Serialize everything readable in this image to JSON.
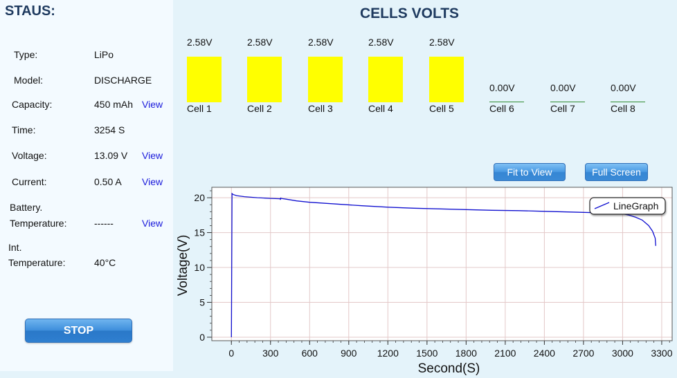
{
  "status": {
    "title": "STAUS:",
    "type_label": "Type:",
    "type_value": "LiPo",
    "model_label": "Model:",
    "model_value": "DISCHARGE",
    "capacity_label": "Capacity:",
    "capacity_value": "450 mAh",
    "time_label": "Time:",
    "time_value": "3254 S",
    "voltage_label": "Voltage:",
    "voltage_value": "13.09 V",
    "current_label": "Current:",
    "current_value": "0.50 A",
    "battery_label_1": "Battery.",
    "battery_label_2": "Temperature:",
    "battery_value": "------",
    "int_label_1": "Int.",
    "int_label_2": "Temperature:",
    "int_value": "40°C",
    "view_label": "View",
    "stop_label": "STOP"
  },
  "cells": {
    "title": "CELLS VOLTS",
    "items": [
      {
        "name": "Cell 1",
        "volt": "2.58V",
        "active": true
      },
      {
        "name": "Cell 2",
        "volt": "2.58V",
        "active": true
      },
      {
        "name": "Cell 3",
        "volt": "2.58V",
        "active": true
      },
      {
        "name": "Cell 4",
        "volt": "2.58V",
        "active": true
      },
      {
        "name": "Cell 5",
        "volt": "2.58V",
        "active": true
      },
      {
        "name": "Cell 6",
        "volt": "0.00V",
        "active": false
      },
      {
        "name": "Cell 7",
        "volt": "0.00V",
        "active": false
      },
      {
        "name": "Cell 8",
        "volt": "0.00V",
        "active": false
      }
    ],
    "bar_color": "#ffff00",
    "empty_line_color": "#2e8b2e"
  },
  "toolbar": {
    "fit_label": "Fit to View",
    "full_label": "Full Screen"
  },
  "chart_data": {
    "type": "line",
    "xlabel": "Second(S)",
    "ylabel": "Voltage(V)",
    "xlim": [
      -150,
      3380
    ],
    "ylim": [
      -0.5,
      21.5
    ],
    "xticks": [
      0,
      300,
      600,
      900,
      1200,
      1500,
      1800,
      2100,
      2400,
      2700,
      3000,
      3300
    ],
    "yticks": [
      0,
      5,
      10,
      15,
      20
    ],
    "grid": true,
    "legend_position": "top-right",
    "series": [
      {
        "name": "LineGraph",
        "color": "#1010d0",
        "x": [
          0,
          5,
          15,
          40,
          100,
          200,
          300,
          375,
          376,
          378,
          380,
          420,
          500,
          600,
          800,
          1000,
          1200,
          1400,
          1600,
          1800,
          2000,
          2200,
          2400,
          2600,
          2800,
          2900,
          3000,
          3050,
          3100,
          3150,
          3200,
          3230,
          3250,
          3254
        ],
        "y": [
          0,
          20.6,
          20.45,
          20.3,
          20.15,
          20.0,
          19.9,
          19.85,
          19.7,
          20.0,
          19.9,
          19.8,
          19.55,
          19.35,
          19.1,
          18.85,
          18.65,
          18.5,
          18.4,
          18.3,
          18.2,
          18.15,
          18.05,
          17.95,
          17.85,
          17.8,
          17.7,
          17.5,
          17.2,
          16.8,
          16.0,
          15.2,
          14.2,
          13.1
        ]
      }
    ]
  }
}
